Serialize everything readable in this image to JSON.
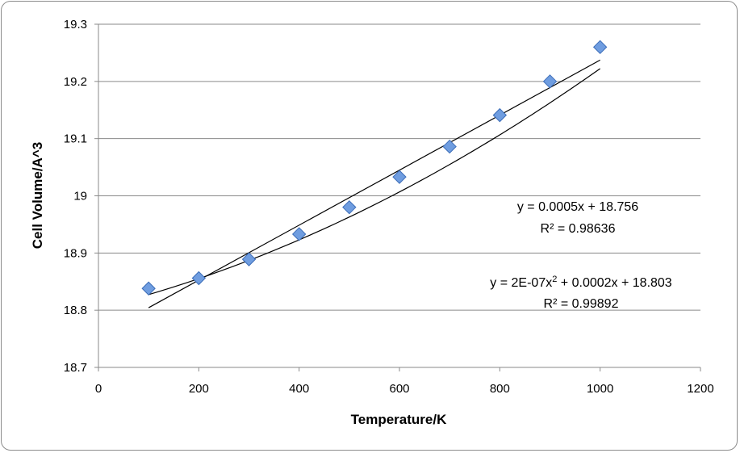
{
  "chart_data": {
    "type": "scatter",
    "title": "",
    "xlabel": "Temperature/K",
    "ylabel": "Cell Volume/A^3",
    "xlim": [
      0,
      1200
    ],
    "ylim": [
      18.7,
      19.3
    ],
    "x_ticks": [
      "0",
      "200",
      "400",
      "600",
      "800",
      "1000",
      "1200"
    ],
    "y_ticks": [
      "18.7",
      "18.8",
      "18.9",
      "19",
      "19.1",
      "19.2",
      "19.3"
    ],
    "grid": "horizontal",
    "legend": "none",
    "marker": "diamond",
    "marker_color": "#6f9de0",
    "series": [
      {
        "x": [
          100,
          200,
          300,
          400,
          500,
          600,
          700,
          800,
          900,
          1000
        ],
        "y": [
          18.838,
          18.856,
          18.889,
          18.933,
          18.98,
          19.033,
          19.086,
          19.141,
          19.2,
          19.26
        ]
      }
    ],
    "trendlines": [
      {
        "type": "linear",
        "equation": "y = 0.0005x + 18.756",
        "r2": "R² = 0.98636",
        "coeffs": [
          0.000481,
          18.7563
        ],
        "x_range": [
          100,
          1000
        ]
      },
      {
        "type": "polynomial",
        "equation_parts": [
          "y = 2E-07x",
          "2",
          " + 0.0002x + 18.803"
        ],
        "r2": "R² = 0.99892",
        "coeffs": [
          2e-07,
          0.000219,
          18.8034
        ],
        "x_range": [
          100,
          1000
        ]
      }
    ]
  }
}
